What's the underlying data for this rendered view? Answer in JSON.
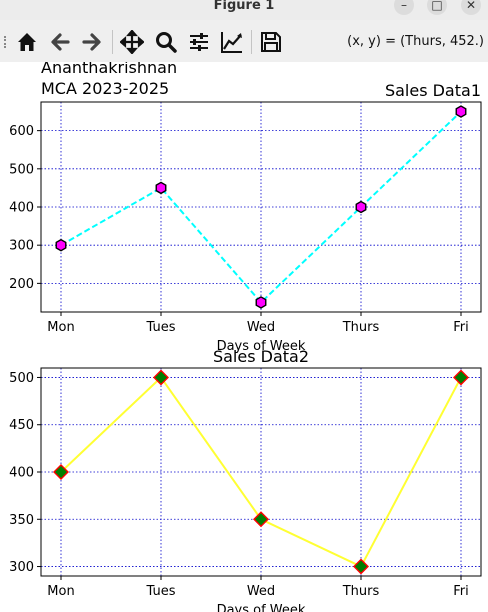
{
  "window": {
    "title": "Figure 1"
  },
  "toolbar": {
    "buttons": [
      "home-icon",
      "back-icon",
      "forward-icon",
      "pan-icon",
      "zoom-icon",
      "configure-subplots-icon",
      "edit-axis-icon",
      "save-icon"
    ],
    "coords": "(x, y) = (Thurs, 452.)"
  },
  "figure": {
    "text_lines": [
      "Ananthakrishnan",
      "MCA 2023-2025"
    ]
  },
  "chart_data": [
    {
      "type": "line",
      "title": "Sales Data1",
      "xlabel": "Days of Week",
      "ylabel": "",
      "categories": [
        "Mon",
        "Tues",
        "Wed",
        "Thurs",
        "Fri"
      ],
      "values": [
        300,
        450,
        150,
        400,
        650
      ],
      "yticks": [
        200,
        300,
        400,
        500,
        600
      ],
      "ylim": [
        125,
        675
      ],
      "line_color": "#00ffff",
      "line_style": "dashed",
      "marker": "hexagon",
      "marker_fill": "#ff00ff",
      "marker_edge": "#000000",
      "grid": true,
      "grid_color": "#0000cc",
      "title_position": "right"
    },
    {
      "type": "line",
      "title": "Sales Data2",
      "xlabel": "Days of Week",
      "ylabel": "",
      "categories": [
        "Mon",
        "Tues",
        "Wed",
        "Thurs",
        "Fri"
      ],
      "values": [
        400,
        500,
        350,
        300,
        500
      ],
      "yticks": [
        300,
        350,
        400,
        450,
        500
      ],
      "ylim": [
        290,
        510
      ],
      "line_color": "#ffff33",
      "line_style": "solid",
      "marker": "diamond",
      "marker_fill": "#007f00",
      "marker_edge": "#ff0000",
      "grid": true,
      "grid_color": "#0000cc",
      "title_position": "center"
    }
  ]
}
